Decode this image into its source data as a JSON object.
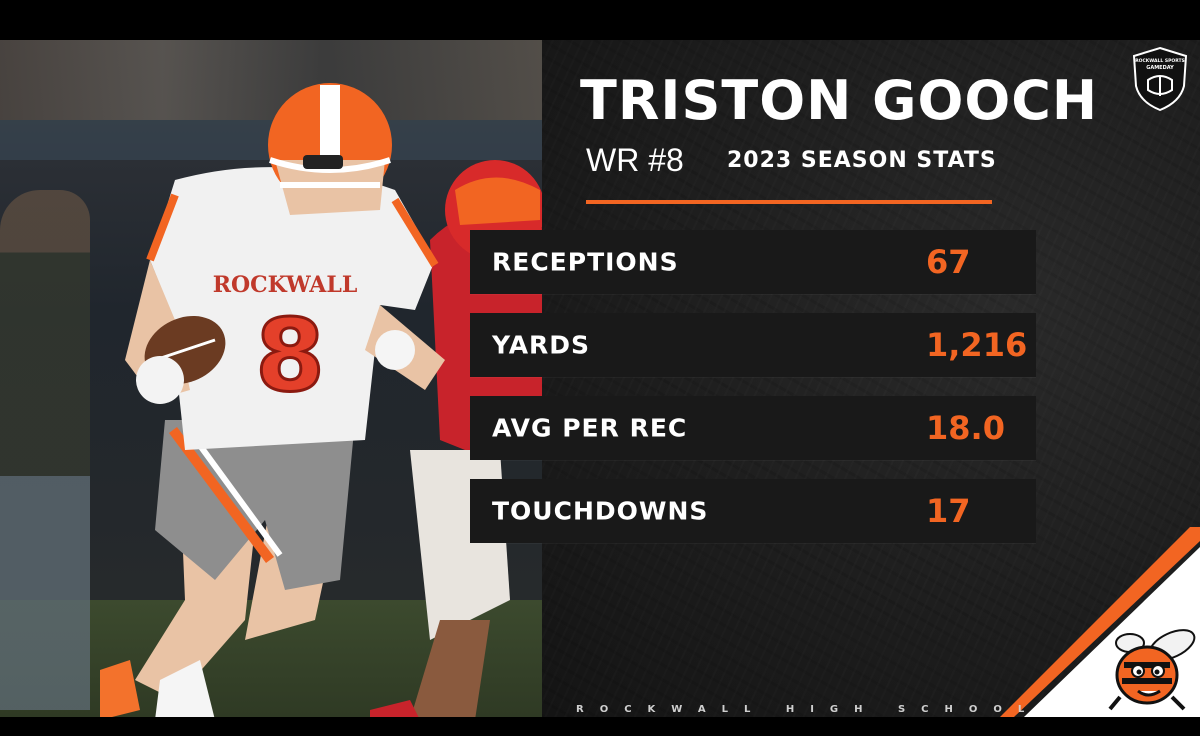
{
  "player": {
    "name": "TRISTON GOOCH",
    "position": "WR #8",
    "season_label": "2023 SEASON STATS",
    "jersey_school": "ROCKWALL",
    "jersey_number": "8"
  },
  "stats": [
    {
      "label": "RECEPTIONS",
      "value": "67"
    },
    {
      "label": "YARDS",
      "value": "1,216"
    },
    {
      "label": "AVG PER REC",
      "value": "18.0"
    },
    {
      "label": "TOUCHDOWNS",
      "value": "17"
    }
  ],
  "footer": {
    "school": "ROCKWALL HIGH SCHOOL"
  },
  "badge": {
    "line1": "ROCKWALL SPORTS",
    "line2": "GAMEDAY"
  },
  "colors": {
    "accent": "#f26522",
    "panel": "#1d1d1d",
    "row": "#191919"
  }
}
